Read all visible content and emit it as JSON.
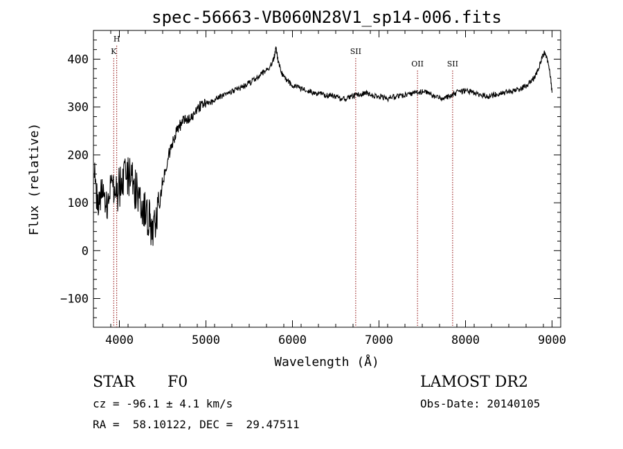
{
  "chart_data": {
    "type": "line",
    "title": "spec-56663-VB060N28V1_sp14-006.fits",
    "xlabel": "Wavelength (Å)",
    "ylabel": "Flux (relative)",
    "xlim": [
      3700,
      9100
    ],
    "ylim": [
      -160,
      460
    ],
    "xticks": [
      4000,
      5000,
      6000,
      7000,
      8000,
      9000
    ],
    "yticks": [
      -100,
      0,
      100,
      200,
      300,
      400
    ],
    "grid": false,
    "line_color": "#000000",
    "marker_color": "#8b0000",
    "series": [
      {
        "x": [
          3710,
          3760,
          3800,
          3850,
          3900,
          3950,
          4000,
          4050,
          4100,
          4150,
          4200,
          4250,
          4300,
          4350,
          4380,
          4420,
          4470,
          4520,
          4570,
          4620,
          4670,
          4720,
          4770,
          4820,
          4870,
          4920,
          4970,
          5020,
          5070,
          5120,
          5170,
          5220,
          5270,
          5320,
          5370,
          5420,
          5470,
          5520,
          5570,
          5620,
          5670,
          5720,
          5760,
          5790,
          5810,
          5830,
          5860,
          5890,
          5920,
          5960,
          6000,
          6050,
          6100,
          6150,
          6200,
          6250,
          6300,
          6350,
          6400,
          6450,
          6500,
          6550,
          6600,
          6650,
          6700,
          6750,
          6800,
          6850,
          6900,
          6950,
          7000,
          7050,
          7100,
          7150,
          7200,
          7250,
          7300,
          7350,
          7400,
          7450,
          7500,
          7550,
          7600,
          7650,
          7700,
          7750,
          7800,
          7850,
          7900,
          7950,
          8000,
          8050,
          8100,
          8150,
          8200,
          8250,
          8300,
          8350,
          8400,
          8450,
          8500,
          8550,
          8600,
          8650,
          8700,
          8750,
          8800,
          8830,
          8860,
          8890,
          8920,
          8950,
          8980,
          9000
        ],
        "y": [
          150,
          80,
          140,
          90,
          160,
          110,
          130,
          150,
          160,
          145,
          120,
          100,
          80,
          60,
          45,
          65,
          110,
          160,
          200,
          230,
          255,
          265,
          275,
          280,
          290,
          300,
          305,
          312,
          310,
          318,
          322,
          325,
          330,
          335,
          338,
          342,
          348,
          352,
          358,
          365,
          372,
          380,
          390,
          405,
          425,
          400,
          380,
          365,
          360,
          352,
          346,
          342,
          338,
          335,
          333,
          330,
          328,
          326,
          324,
          325,
          322,
          318,
          316,
          320,
          322,
          326,
          328,
          330,
          326,
          324,
          322,
          320,
          318,
          320,
          322,
          324,
          325,
          326,
          328,
          330,
          332,
          330,
          326,
          322,
          320,
          318,
          322,
          326,
          330,
          332,
          334,
          332,
          330,
          326,
          324,
          322,
          324,
          326,
          328,
          330,
          332,
          334,
          336,
          340,
          345,
          352,
          362,
          375,
          390,
          405,
          415,
          395,
          365,
          330
        ]
      }
    ],
    "line_markers": [
      {
        "x": 3934,
        "label": "K"
      },
      {
        "x": 3969,
        "label": "H"
      },
      {
        "x": 6731,
        "label": "SII"
      },
      {
        "x": 7445,
        "label": "OII"
      },
      {
        "x": 7851,
        "label": "SII"
      }
    ]
  },
  "info": {
    "object_class": "STAR",
    "subclass": "F0",
    "survey": "LAMOST DR2",
    "redshift": "cz = -96.1 ± 4.1 km/s",
    "obs_date": "Obs-Date: 20140105",
    "coords": "RA =  58.10122, DEC =  29.47511"
  }
}
